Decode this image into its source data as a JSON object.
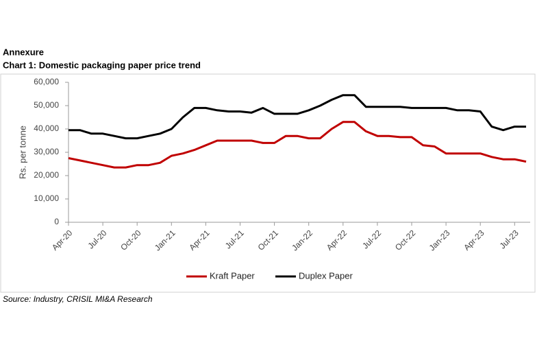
{
  "chart_data": {
    "type": "line",
    "header": "Annexure",
    "title": "Chart 1: Domestic packaging paper price trend",
    "y_label": "Rs. per tonne",
    "source": "Source: Industry, CRISIL MI&A Research",
    "categories": [
      "Apr-20",
      null,
      null,
      "Jul-20",
      null,
      null,
      "Oct-20",
      null,
      null,
      "Jan-21",
      null,
      null,
      "Apr-21",
      null,
      null,
      "Jul-21",
      null,
      null,
      "Oct-21",
      null,
      null,
      "Jan-22",
      null,
      null,
      "Apr-22",
      null,
      null,
      "Jul-22",
      null,
      null,
      "Oct-22",
      null,
      null,
      "Jan-23",
      null,
      null,
      "Apr-23",
      null,
      null,
      "Jul-23",
      null
    ],
    "series": [
      {
        "name": "Kraft Paper",
        "color": "#c00000",
        "values": [
          27500,
          26500,
          25500,
          24500,
          23500,
          23500,
          24500,
          24500,
          25500,
          28500,
          29500,
          31000,
          33000,
          35000,
          35000,
          35000,
          35000,
          34000,
          34000,
          37000,
          37000,
          36000,
          36000,
          40000,
          43000,
          43000,
          39000,
          37000,
          37000,
          36500,
          36500,
          33000,
          32500,
          29500,
          29500,
          29500,
          29500,
          28000,
          27000,
          27000,
          26000
        ]
      },
      {
        "name": "Duplex Paper",
        "color": "#000000",
        "values": [
          39500,
          39500,
          38000,
          38000,
          37000,
          36000,
          36000,
          37000,
          38000,
          40000,
          45000,
          49000,
          49000,
          48000,
          47500,
          47500,
          47000,
          49000,
          46500,
          46500,
          46500,
          48000,
          50000,
          52500,
          54500,
          54500,
          49500,
          49500,
          49500,
          49500,
          49000,
          49000,
          49000,
          49000,
          48000,
          48000,
          47500,
          41000,
          39500,
          41000,
          41000
        ]
      }
    ],
    "ylim": [
      0,
      60000
    ],
    "yticks": [
      0,
      {
        "value": 10000,
        "label": "10,000"
      },
      {
        "value": 20000,
        "label": "20,000"
      },
      {
        "value": 30000,
        "label": "30,000"
      },
      {
        "value": 40000,
        "label": "40,000"
      },
      {
        "value": 50000,
        "label": "50,000"
      },
      {
        "value": 60000,
        "label": "60,000"
      }
    ],
    "legend": "bottom"
  }
}
